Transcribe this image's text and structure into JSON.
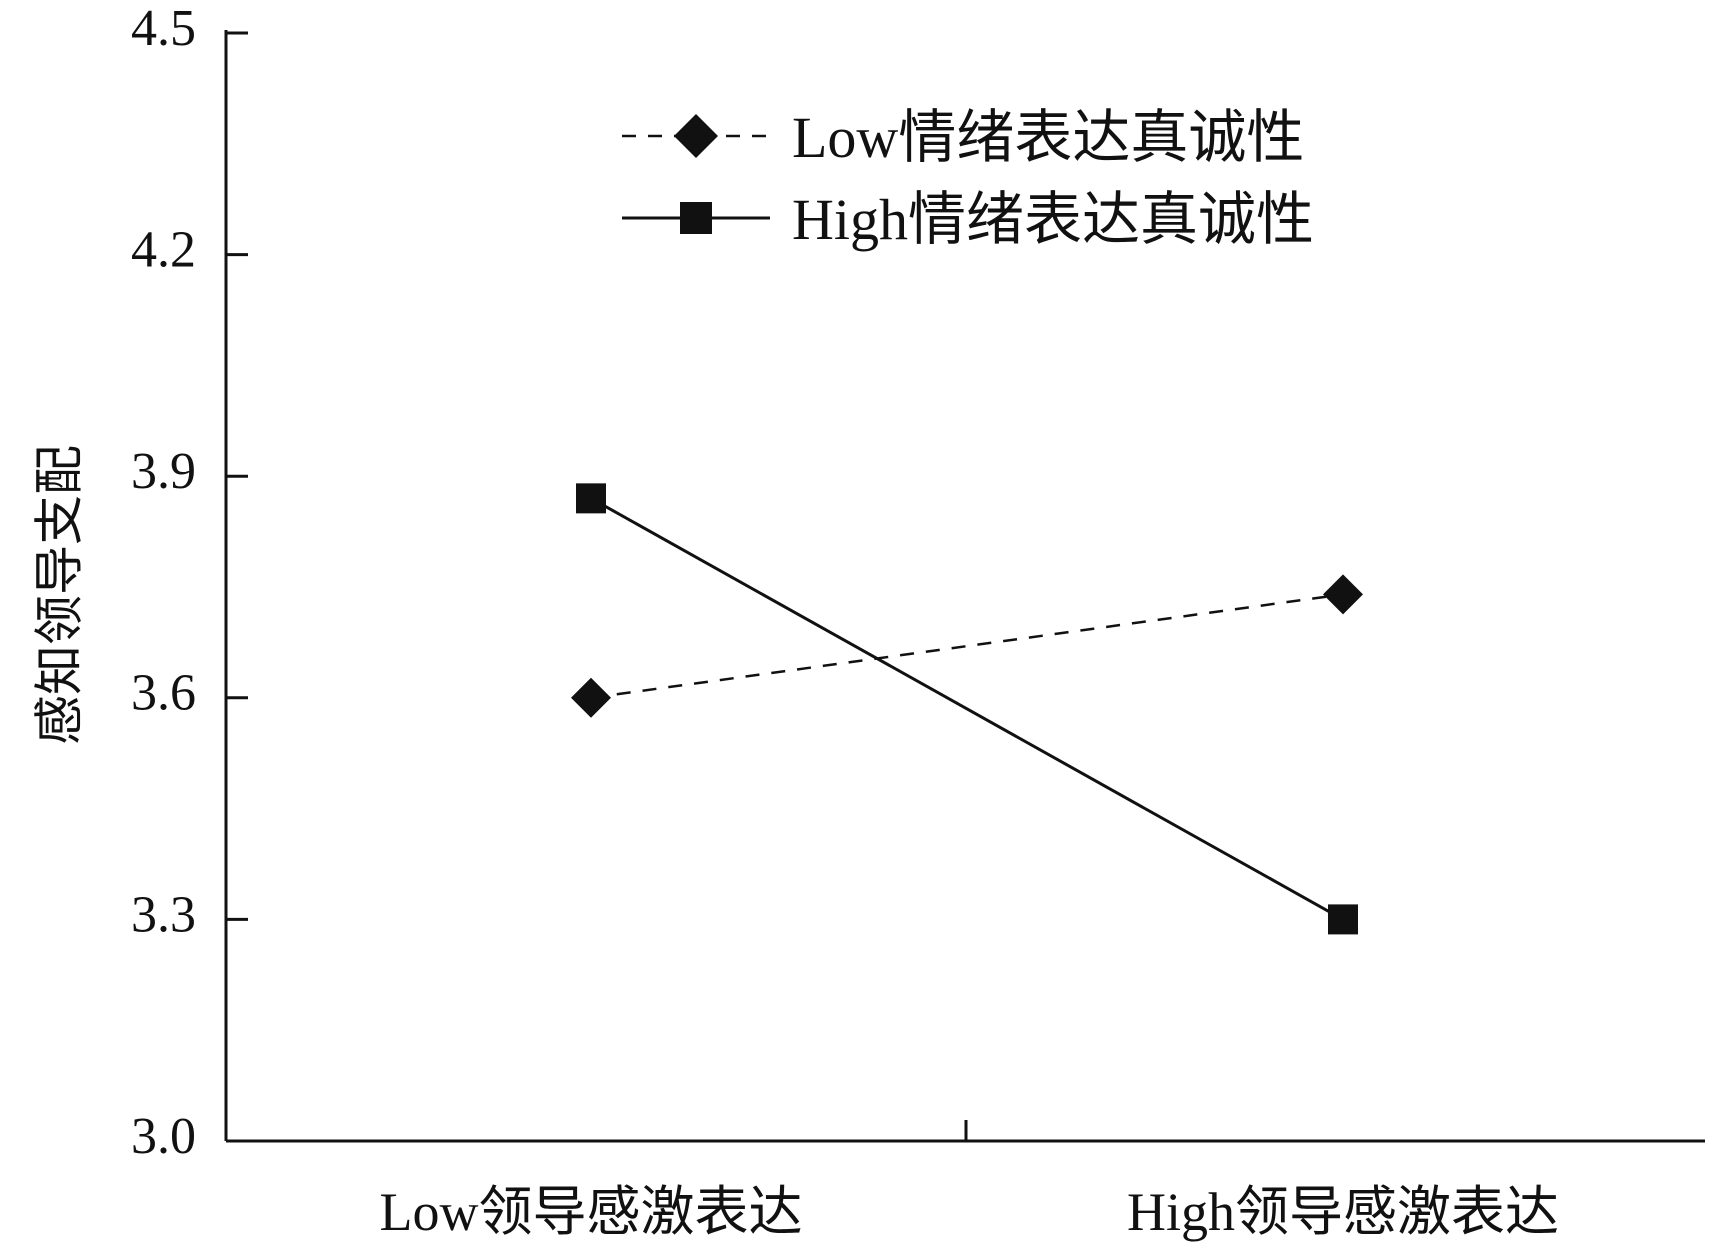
{
  "chart_data": {
    "type": "line",
    "categories": [
      "Low领导感激表达",
      "High领导感激表达"
    ],
    "ylabel": "感知领导支配",
    "xlabel": "",
    "ylim": [
      3.0,
      4.5
    ],
    "yticks": [
      "3.0",
      "3.3",
      "3.6",
      "3.9",
      "4.2",
      "4.5"
    ],
    "grid": false,
    "legend_position": "top-center",
    "series": [
      {
        "name": "Low情绪表达真诚性",
        "values": [
          3.6,
          3.74
        ],
        "line_style": "dashed",
        "marker": "diamond",
        "color": "#111111"
      },
      {
        "name": "High情绪表达真诚性",
        "values": [
          3.87,
          3.3
        ],
        "line_style": "solid",
        "marker": "square",
        "color": "#111111"
      }
    ]
  }
}
